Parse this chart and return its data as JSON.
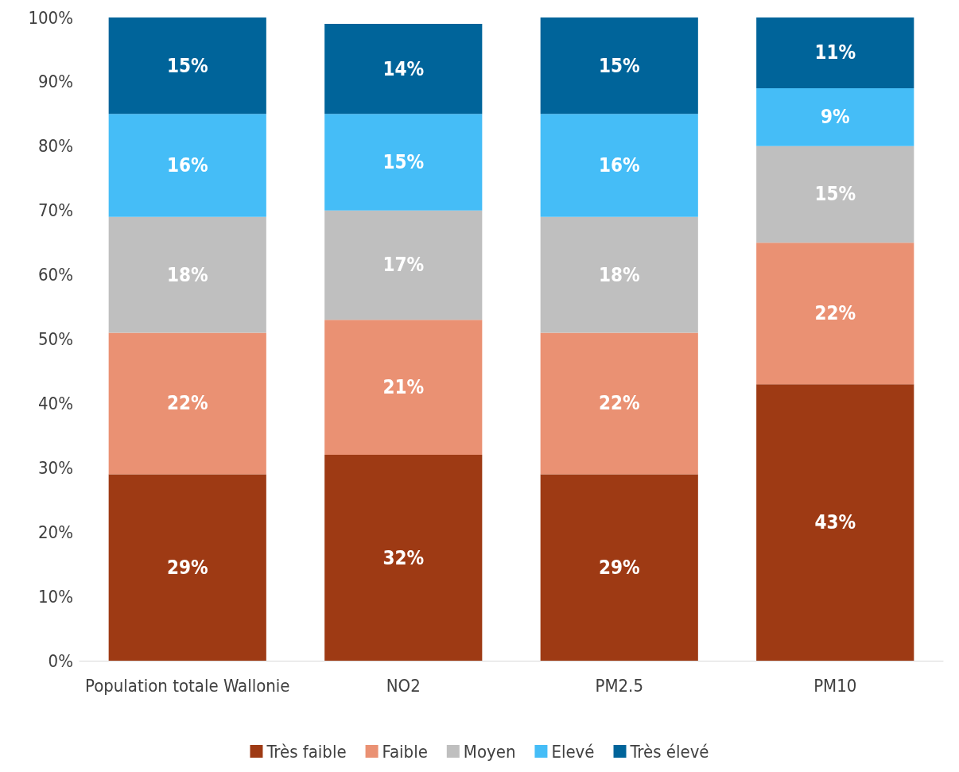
{
  "chart_data": {
    "type": "bar",
    "stacked": true,
    "categories": [
      "Population totale Wallonie",
      "NO2",
      "PM2.5",
      "PM10"
    ],
    "series": [
      {
        "name": "Très faible",
        "color": "#9e3a14",
        "values": [
          29,
          32,
          29,
          43
        ],
        "value_labels": [
          "29%",
          "32%",
          "29%",
          "43%"
        ]
      },
      {
        "name": "Faible",
        "color": "#ea9173",
        "values": [
          22,
          21,
          22,
          22
        ],
        "value_labels": [
          "22%",
          "21%",
          "22%",
          "22%"
        ]
      },
      {
        "name": "Moyen",
        "color": "#bfbfbf",
        "values": [
          18,
          17,
          18,
          15
        ],
        "value_labels": [
          "18%",
          "17%",
          "18%",
          "15%"
        ]
      },
      {
        "name": "Elevé",
        "color": "#45bdf7",
        "values": [
          16,
          15,
          16,
          9
        ],
        "value_labels": [
          "16%",
          "15%",
          "16%",
          "9%"
        ]
      },
      {
        "name": "Très élevé",
        "color": "#00649a",
        "values": [
          15,
          14,
          15,
          11
        ],
        "value_labels": [
          "15%",
          "14%",
          "15%",
          "11%"
        ]
      }
    ],
    "ylim": [
      0,
      100
    ],
    "yticks": [
      {
        "value": 0,
        "label": "0%"
      },
      {
        "value": 10,
        "label": "10%"
      },
      {
        "value": 20,
        "label": "20%"
      },
      {
        "value": 30,
        "label": "30%"
      },
      {
        "value": 40,
        "label": "40%"
      },
      {
        "value": 50,
        "label": "50%"
      },
      {
        "value": 60,
        "label": "60%"
      },
      {
        "value": 70,
        "label": "70%"
      },
      {
        "value": 80,
        "label": "80%"
      },
      {
        "value": 90,
        "label": "90%"
      },
      {
        "value": 100,
        "label": "100%"
      }
    ],
    "grid": false,
    "legend": "bottom"
  }
}
